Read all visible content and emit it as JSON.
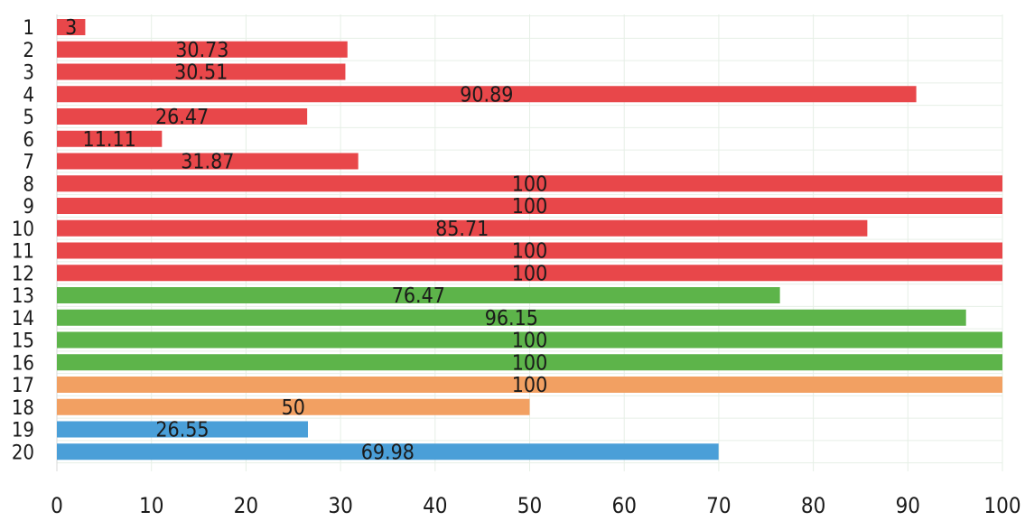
{
  "chart_data": {
    "type": "bar",
    "orientation": "horizontal",
    "categories": [
      "1",
      "2",
      "3",
      "4",
      "5",
      "6",
      "7",
      "8",
      "9",
      "10",
      "11",
      "12",
      "13",
      "14",
      "15",
      "16",
      "17",
      "18",
      "19",
      "20"
    ],
    "values": [
      3,
      30.73,
      30.51,
      90.89,
      26.47,
      11.11,
      31.87,
      100,
      100,
      85.71,
      100,
      100,
      76.47,
      96.15,
      100,
      100,
      100,
      50,
      26.55,
      69.98
    ],
    "value_labels": [
      "3",
      "30.73",
      "30.51",
      "90.89",
      "26.47",
      "11.11",
      "31.87",
      "100",
      "100",
      "85.71",
      "100",
      "100",
      "76.47",
      "96.15",
      "100",
      "100",
      "100",
      "50",
      "26.55",
      "69.98"
    ],
    "bar_colors": [
      "#e8474a",
      "#e8474a",
      "#e8474a",
      "#e8474a",
      "#e8474a",
      "#e8474a",
      "#e8474a",
      "#e8474a",
      "#e8474a",
      "#e8474a",
      "#e8474a",
      "#e8474a",
      "#5db44a",
      "#5db44a",
      "#5db44a",
      "#5db44a",
      "#f2a062",
      "#f2a062",
      "#4a9fd8",
      "#4a9fd8"
    ],
    "xlim": [
      0,
      100
    ],
    "xticks": [
      0,
      10,
      20,
      30,
      40,
      50,
      60,
      70,
      80,
      90,
      100
    ],
    "grid": true,
    "title": "",
    "xlabel": "",
    "ylabel": ""
  }
}
